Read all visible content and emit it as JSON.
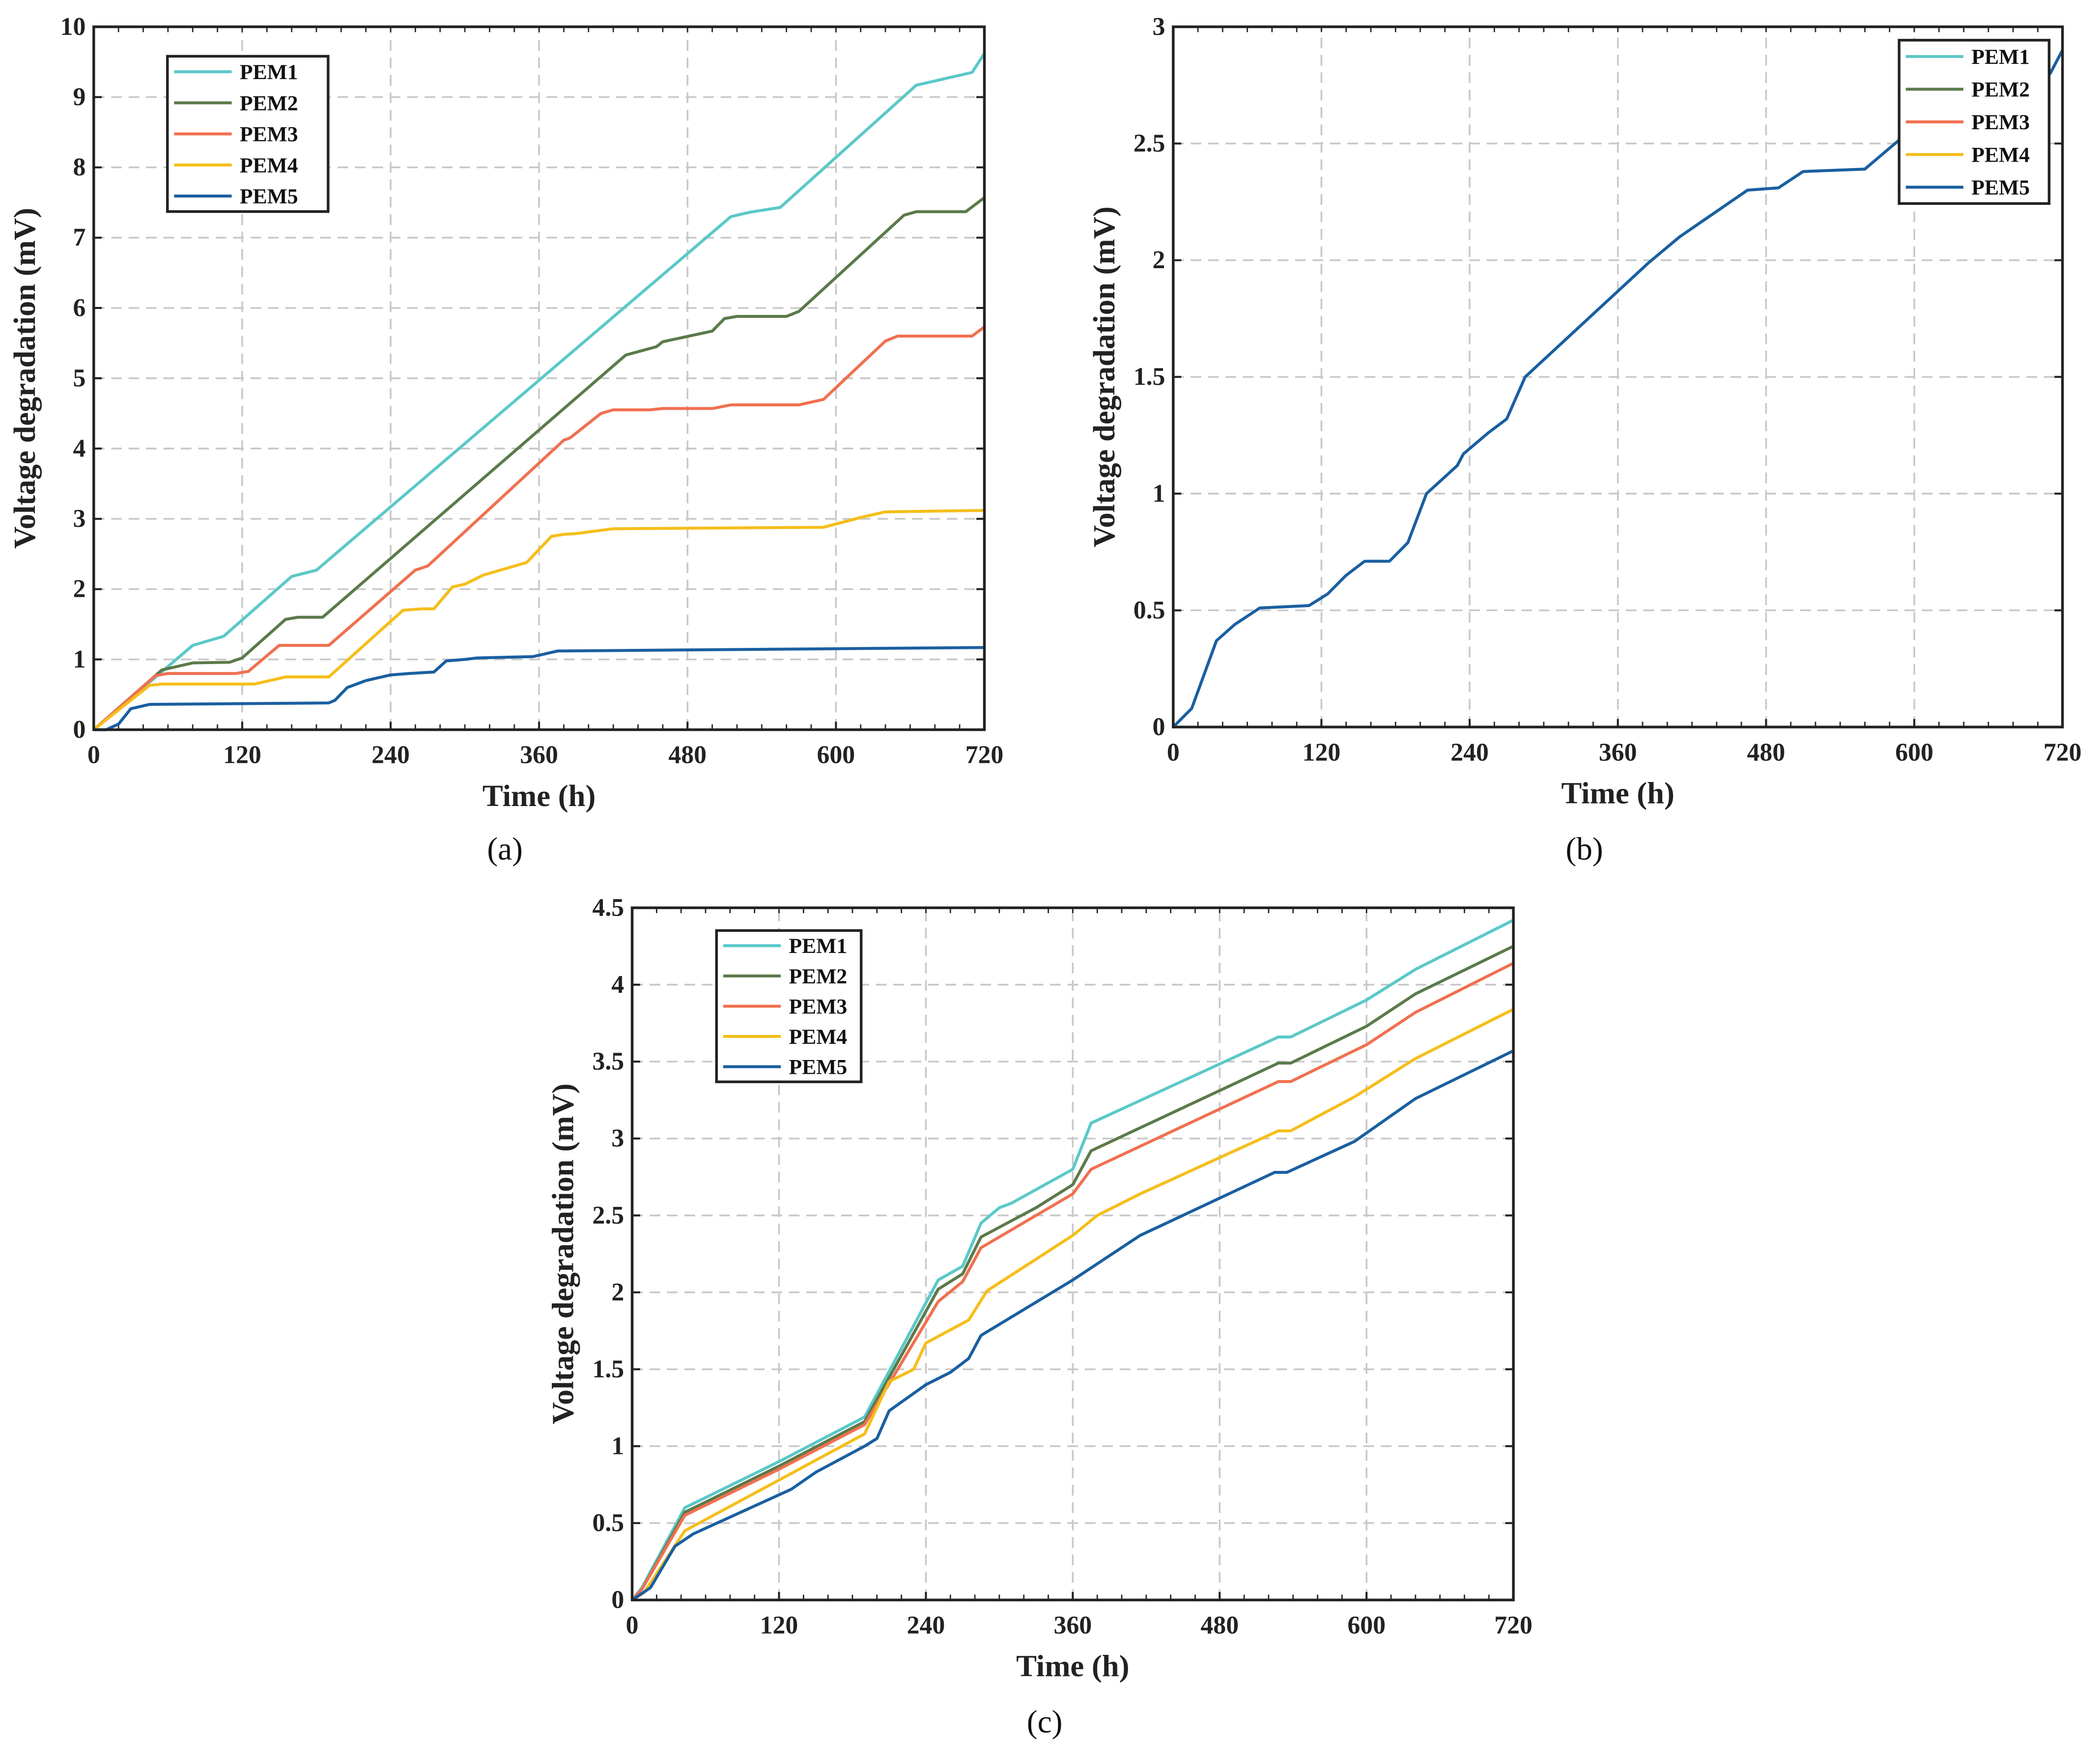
{
  "chart_data": [
    {
      "type": "line",
      "panel_label": "(a)",
      "xlabel": "Time (h)",
      "ylabel": "Voltage degradation (mV)",
      "xlim": [
        0,
        720
      ],
      "ylim": [
        0,
        10
      ],
      "xticks": [
        "0",
        "120",
        "240",
        "360",
        "480",
        "600",
        "720"
      ],
      "yticks": [
        "0",
        "1",
        "2",
        "3",
        "4",
        "5",
        "6",
        "7",
        "8",
        "9",
        "10"
      ],
      "grid": true,
      "legend_position": "top-left",
      "series": [
        {
          "name": "PEM1",
          "color": "#5BC8C8",
          "points": [
            [
              0,
              0
            ],
            [
              50,
              0.75
            ],
            [
              60,
              0.9
            ],
            [
              80,
              1.2
            ],
            [
              105,
              1.33
            ],
            [
              160,
              2.18
            ],
            [
              180,
              2.27
            ],
            [
              515,
              7.3
            ],
            [
              530,
              7.36
            ],
            [
              555,
              7.43
            ],
            [
              665,
              9.17
            ],
            [
              710,
              9.35
            ],
            [
              720,
              9.62
            ]
          ]
        },
        {
          "name": "PEM2",
          "color": "#5B7A4A",
          "points": [
            [
              0,
              0
            ],
            [
              55,
              0.85
            ],
            [
              80,
              0.95
            ],
            [
              110,
              0.96
            ],
            [
              120,
              1.02
            ],
            [
              155,
              1.57
            ],
            [
              165,
              1.6
            ],
            [
              185,
              1.6
            ],
            [
              430,
              5.33
            ],
            [
              455,
              5.45
            ],
            [
              460,
              5.52
            ],
            [
              500,
              5.67
            ],
            [
              510,
              5.85
            ],
            [
              520,
              5.88
            ],
            [
              560,
              5.88
            ],
            [
              570,
              5.95
            ],
            [
              655,
              7.32
            ],
            [
              665,
              7.37
            ],
            [
              705,
              7.37
            ],
            [
              720,
              7.57
            ]
          ]
        },
        {
          "name": "PEM3",
          "color": "#F07050",
          "points": [
            [
              0,
              0
            ],
            [
              50,
              0.77
            ],
            [
              60,
              0.8
            ],
            [
              115,
              0.8
            ],
            [
              125,
              0.83
            ],
            [
              150,
              1.2
            ],
            [
              190,
              1.2
            ],
            [
              260,
              2.27
            ],
            [
              270,
              2.33
            ],
            [
              380,
              4.12
            ],
            [
              385,
              4.15
            ],
            [
              410,
              4.5
            ],
            [
              420,
              4.55
            ],
            [
              450,
              4.55
            ],
            [
              460,
              4.57
            ],
            [
              500,
              4.57
            ],
            [
              515,
              4.62
            ],
            [
              570,
              4.62
            ],
            [
              590,
              4.7
            ],
            [
              640,
              5.53
            ],
            [
              650,
              5.6
            ],
            [
              710,
              5.6
            ],
            [
              720,
              5.73
            ]
          ]
        },
        {
          "name": "PEM4",
          "color": "#F5BE1A",
          "points": [
            [
              0,
              0
            ],
            [
              45,
              0.63
            ],
            [
              55,
              0.65
            ],
            [
              130,
              0.65
            ],
            [
              155,
              0.75
            ],
            [
              190,
              0.75
            ],
            [
              250,
              1.7
            ],
            [
              265,
              1.72
            ],
            [
              275,
              1.72
            ],
            [
              290,
              2.03
            ],
            [
              300,
              2.07
            ],
            [
              315,
              2.2
            ],
            [
              350,
              2.38
            ],
            [
              370,
              2.75
            ],
            [
              380,
              2.78
            ],
            [
              390,
              2.79
            ],
            [
              420,
              2.86
            ],
            [
              590,
              2.88
            ],
            [
              620,
              3.02
            ],
            [
              640,
              3.1
            ],
            [
              720,
              3.12
            ]
          ]
        },
        {
          "name": "PEM5",
          "color": "#1A5FA0",
          "points": [
            [
              0,
              0
            ],
            [
              10,
              0
            ],
            [
              20,
              0.08
            ],
            [
              30,
              0.3
            ],
            [
              45,
              0.36
            ],
            [
              190,
              0.38
            ],
            [
              195,
              0.42
            ],
            [
              205,
              0.6
            ],
            [
              220,
              0.7
            ],
            [
              240,
              0.78
            ],
            [
              255,
              0.8
            ],
            [
              275,
              0.82
            ],
            [
              285,
              0.98
            ],
            [
              300,
              1.0
            ],
            [
              310,
              1.02
            ],
            [
              355,
              1.04
            ],
            [
              375,
              1.12
            ],
            [
              720,
              1.17
            ]
          ]
        }
      ]
    },
    {
      "type": "line",
      "panel_label": "(b)",
      "xlabel": "Time (h)",
      "ylabel": "Voltage degradation (mV)",
      "xlim": [
        0,
        720
      ],
      "ylim": [
        0,
        3
      ],
      "xticks": [
        "0",
        "120",
        "240",
        "360",
        "480",
        "600",
        "720"
      ],
      "yticks": [
        "0",
        "0.5",
        "1",
        "1.5",
        "2",
        "2.5",
        "3"
      ],
      "grid": true,
      "legend_position": "top-right",
      "series": [
        {
          "name": "PEM1",
          "color": "#5BC8C8",
          "points": []
        },
        {
          "name": "PEM2",
          "color": "#5B7A4A",
          "points": []
        },
        {
          "name": "PEM3",
          "color": "#F07050",
          "points": []
        },
        {
          "name": "PEM4",
          "color": "#F5BE1A",
          "points": []
        },
        {
          "name": "PEM5",
          "color": "#1A5FA0",
          "points": [
            [
              0,
              0
            ],
            [
              15,
              0.08
            ],
            [
              35,
              0.37
            ],
            [
              50,
              0.44
            ],
            [
              70,
              0.51
            ],
            [
              110,
              0.52
            ],
            [
              125,
              0.57
            ],
            [
              140,
              0.65
            ],
            [
              155,
              0.71
            ],
            [
              175,
              0.71
            ],
            [
              190,
              0.79
            ],
            [
              205,
              1.0
            ],
            [
              230,
              1.12
            ],
            [
              235,
              1.17
            ],
            [
              255,
              1.26
            ],
            [
              270,
              1.32
            ],
            [
              285,
              1.5
            ],
            [
              385,
              1.99
            ],
            [
              410,
              2.1
            ],
            [
              465,
              2.3
            ],
            [
              490,
              2.31
            ],
            [
              510,
              2.38
            ],
            [
              560,
              2.39
            ],
            [
              600,
              2.57
            ],
            [
              710,
              2.8
            ],
            [
              720,
              2.9
            ]
          ]
        }
      ]
    },
    {
      "type": "line",
      "panel_label": "(c)",
      "xlabel": "Time (h)",
      "ylabel": "Voltage degradation (mV)",
      "xlim": [
        0,
        720
      ],
      "ylim": [
        0,
        4.5
      ],
      "xticks": [
        "0",
        "120",
        "240",
        "360",
        "480",
        "600",
        "720"
      ],
      "yticks": [
        "0",
        "0.5",
        "1",
        "1.5",
        "2",
        "2.5",
        "3",
        "3.5",
        "4",
        "4.5"
      ],
      "grid": true,
      "legend_position": "top-left",
      "series": [
        {
          "name": "PEM1",
          "color": "#5BC8C8",
          "points": [
            [
              0,
              0
            ],
            [
              8,
              0.08
            ],
            [
              43,
              0.6
            ],
            [
              120,
              0.9
            ],
            [
              190,
              1.19
            ],
            [
              250,
              2.08
            ],
            [
              270,
              2.17
            ],
            [
              285,
              2.45
            ],
            [
              300,
              2.55
            ],
            [
              310,
              2.58
            ],
            [
              360,
              2.8
            ],
            [
              375,
              3.1
            ],
            [
              528,
              3.66
            ],
            [
              538,
              3.66
            ],
            [
              600,
              3.9
            ],
            [
              640,
              4.1
            ],
            [
              720,
              4.42
            ]
          ]
        },
        {
          "name": "PEM2",
          "color": "#5B7A4A",
          "points": [
            [
              0,
              0
            ],
            [
              8,
              0.07
            ],
            [
              43,
              0.57
            ],
            [
              120,
              0.87
            ],
            [
              190,
              1.16
            ],
            [
              250,
              2.02
            ],
            [
              270,
              2.12
            ],
            [
              285,
              2.36
            ],
            [
              330,
              2.55
            ],
            [
              360,
              2.7
            ],
            [
              375,
              2.92
            ],
            [
              528,
              3.49
            ],
            [
              538,
              3.49
            ],
            [
              600,
              3.73
            ],
            [
              640,
              3.94
            ],
            [
              720,
              4.25
            ]
          ]
        },
        {
          "name": "PEM3",
          "color": "#F07050",
          "points": [
            [
              0,
              0
            ],
            [
              8,
              0.07
            ],
            [
              43,
              0.55
            ],
            [
              120,
              0.85
            ],
            [
              190,
              1.14
            ],
            [
              250,
              1.94
            ],
            [
              270,
              2.07
            ],
            [
              285,
              2.29
            ],
            [
              360,
              2.64
            ],
            [
              375,
              2.8
            ],
            [
              528,
              3.37
            ],
            [
              538,
              3.37
            ],
            [
              600,
              3.61
            ],
            [
              640,
              3.82
            ],
            [
              720,
              4.14
            ]
          ]
        },
        {
          "name": "PEM4",
          "color": "#F5BE1A",
          "points": [
            [
              0,
              0
            ],
            [
              10,
              0.05
            ],
            [
              43,
              0.45
            ],
            [
              120,
              0.78
            ],
            [
              190,
              1.08
            ],
            [
              210,
              1.42
            ],
            [
              230,
              1.5
            ],
            [
              240,
              1.67
            ],
            [
              275,
              1.82
            ],
            [
              290,
              2.01
            ],
            [
              360,
              2.37
            ],
            [
              380,
              2.5
            ],
            [
              415,
              2.64
            ],
            [
              528,
              3.05
            ],
            [
              538,
              3.05
            ],
            [
              590,
              3.27
            ],
            [
              640,
              3.52
            ],
            [
              720,
              3.84
            ]
          ]
        },
        {
          "name": "PEM5",
          "color": "#1A5FA0",
          "points": [
            [
              0,
              0
            ],
            [
              15,
              0.08
            ],
            [
              35,
              0.35
            ],
            [
              50,
              0.43
            ],
            [
              130,
              0.72
            ],
            [
              150,
              0.83
            ],
            [
              190,
              1.0
            ],
            [
              200,
              1.05
            ],
            [
              210,
              1.23
            ],
            [
              240,
              1.4
            ],
            [
              260,
              1.48
            ],
            [
              275,
              1.57
            ],
            [
              285,
              1.72
            ],
            [
              360,
              2.08
            ],
            [
              415,
              2.37
            ],
            [
              525,
              2.78
            ],
            [
              535,
              2.78
            ],
            [
              590,
              2.98
            ],
            [
              640,
              3.26
            ],
            [
              720,
              3.57
            ]
          ]
        }
      ]
    }
  ]
}
